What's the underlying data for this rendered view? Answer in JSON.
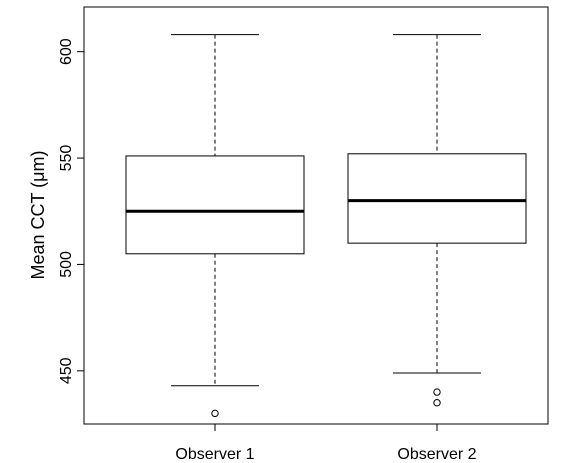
{
  "chart_data": {
    "type": "box",
    "title": "",
    "xlabel": "",
    "ylabel": "Mean CCT (μm)",
    "ylim": [
      425,
      621
    ],
    "yticks": [
      450,
      500,
      550,
      600
    ],
    "categories": [
      "Observer 1",
      "Observer 2"
    ],
    "series": [
      {
        "category": "Observer 1",
        "whisker_low": 443,
        "q1": 505,
        "median": 525,
        "q3": 551,
        "whisker_high": 608,
        "outliers": [
          430
        ]
      },
      {
        "category": "Observer 2",
        "whisker_low": 449,
        "q1": 510,
        "median": 530,
        "q3": 552,
        "whisker_high": 608,
        "outliers": [
          440,
          435
        ]
      }
    ],
    "grid": false,
    "legend": "none",
    "colors": {
      "stroke": "#000000",
      "box_fill": "#ffffff",
      "background": "#ffffff"
    }
  }
}
